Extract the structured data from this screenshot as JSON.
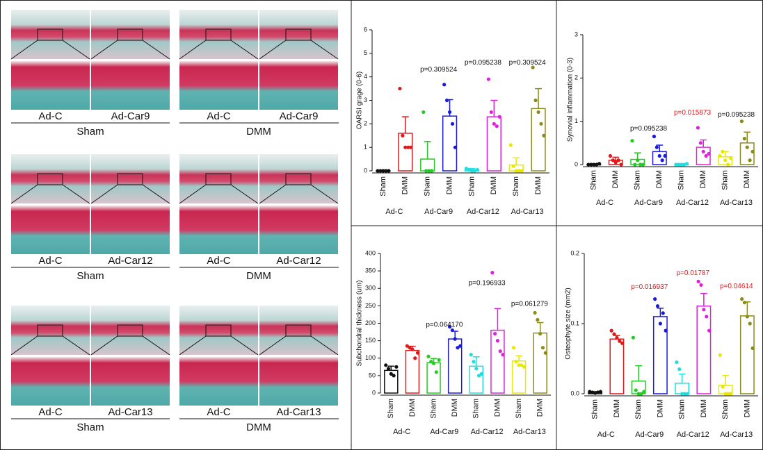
{
  "histology": {
    "rows": [
      {
        "labels": [
          "Ad-C",
          "Ad-Car9",
          "Ad-C",
          "Ad-Car9"
        ],
        "groups": [
          "Sham",
          "DMM"
        ]
      },
      {
        "labels": [
          "Ad-C",
          "Ad-Car12",
          "Ad-C",
          "Ad-Car12"
        ],
        "groups": [
          "Sham",
          "DMM"
        ]
      },
      {
        "labels": [
          "Ad-C",
          "Ad-Car13",
          "Ad-C",
          "Ad-Car13"
        ],
        "groups": [
          "Sham",
          "DMM"
        ]
      }
    ]
  },
  "chart_data": [
    {
      "type": "bar",
      "y_label": "OARSI grage (0-6)",
      "categories": [
        "Sham",
        "DMM",
        "Sham",
        "DMM",
        "Sham",
        "DMM",
        "Sham",
        "DMM"
      ],
      "groups": [
        "Ad-C",
        "Ad-Car9",
        "Ad-Car12",
        "Ad-Car13"
      ],
      "colors": [
        "#111111",
        "#e0191b",
        "#22cc22",
        "#1a1adb",
        "#22dddd",
        "#dd22dd",
        "#e8e800",
        "#8b8b1a"
      ],
      "values": [
        0,
        1.6,
        0.5,
        2.33,
        0.05,
        2.3,
        0.25,
        2.65
      ],
      "errors": [
        0,
        0.7,
        0.75,
        0.7,
        0.05,
        0.7,
        0.3,
        0.85
      ],
      "points": [
        [
          0,
          0,
          0,
          0,
          0
        ],
        [
          3.5,
          1.5,
          1,
          1,
          1
        ],
        [
          2.5,
          0,
          0,
          0
        ],
        [
          3.67,
          3,
          2.5,
          2,
          1
        ],
        [
          0.1,
          0.05,
          0,
          0,
          0.05
        ],
        [
          3.9,
          2.5,
          2,
          1.9,
          2.3
        ],
        [
          1.1,
          0.2,
          0,
          0,
          0
        ],
        [
          4.4,
          3,
          2.5,
          2,
          1.5
        ]
      ],
      "p_values": [
        null,
        "p=0.309524",
        "p=0.095238",
        "p=0.309524"
      ],
      "p_value_y": [
        null,
        4.3,
        4.6,
        4.6
      ],
      "p_value_colors": [
        null,
        "#111111",
        "#111111",
        "#111111"
      ],
      "ylim": [
        0,
        6
      ],
      "yticks": [
        0,
        1,
        2,
        3,
        4,
        5,
        6
      ]
    },
    {
      "type": "bar",
      "y_label": "Synovial inflammation (0-3)",
      "categories": [
        "Sham",
        "DMM",
        "Sham",
        "DMM",
        "Sham",
        "DMM",
        "Sham",
        "DMM"
      ],
      "groups": [
        "Ad-C",
        "Ad-Car9",
        "Ad-Car12",
        "Ad-Car13"
      ],
      "colors": [
        "#111111",
        "#e0191b",
        "#22cc22",
        "#1a1adb",
        "#22dddd",
        "#dd22dd",
        "#e8e800",
        "#8b8b1a"
      ],
      "values": [
        0,
        0.1,
        0.12,
        0.3,
        0,
        0.4,
        0.18,
        0.5
      ],
      "errors": [
        0.02,
        0.07,
        0.15,
        0.15,
        0.02,
        0.17,
        0.12,
        0.25
      ],
      "points": [
        [
          0,
          0,
          0,
          0,
          0.02
        ],
        [
          0.2,
          0.1,
          0.05,
          0.1,
          0
        ],
        [
          0.55,
          0,
          0.1,
          0,
          0
        ],
        [
          0.65,
          0.4,
          0.2,
          0.1,
          0.2
        ],
        [
          0,
          0,
          0,
          0,
          0.02
        ],
        [
          0.85,
          0.5,
          0.3,
          0.2,
          0.25
        ],
        [
          0.2,
          0.3,
          0.1,
          0,
          0.15
        ],
        [
          1.0,
          0.6,
          0.4,
          0.1,
          0.3
        ]
      ],
      "p_values": [
        null,
        "p=0.095238",
        "p=0.015873",
        "p=0.095238"
      ],
      "p_value_y": [
        null,
        0.83,
        1.2,
        1.15
      ],
      "p_value_colors": [
        null,
        "#111111",
        "#e0191b",
        "#111111"
      ],
      "ylim": [
        0,
        3
      ],
      "yticks": [
        0,
        1,
        2,
        3
      ]
    },
    {
      "type": "bar",
      "y_label": "Subchondral thickness (um)",
      "categories": [
        "Sham",
        "DMM",
        "Sham",
        "DMM",
        "Sham",
        "DMM",
        "Sham",
        "DMM"
      ],
      "groups": [
        "Ad-C",
        "Ad-Car9",
        "Ad-Car12",
        "Ad-Car13"
      ],
      "colors": [
        "#111111",
        "#e0191b",
        "#22cc22",
        "#1a1adb",
        "#22dddd",
        "#dd22dd",
        "#e8e800",
        "#8b8b1a"
      ],
      "values": [
        65,
        122,
        87,
        155,
        77,
        180,
        92,
        172
      ],
      "errors": [
        12,
        12,
        12,
        22,
        27,
        62,
        15,
        30
      ],
      "points": [
        [
          80,
          70,
          55,
          50,
          75
        ],
        [
          135,
          130,
          125,
          100,
          115
        ],
        [
          105,
          90,
          85,
          60,
          95
        ],
        [
          190,
          180,
          155,
          130,
          135
        ],
        [
          110,
          90,
          70,
          50,
          55
        ],
        [
          345,
          170,
          150,
          120,
          110
        ],
        [
          130,
          90,
          80,
          80,
          75
        ],
        [
          230,
          210,
          170,
          130,
          115
        ]
      ],
      "p_values": [
        null,
        "p=0.064170",
        "p=0.196933",
        "p=0.061279"
      ],
      "p_value_y": [
        null,
        195,
        315,
        255
      ],
      "p_value_colors": [
        null,
        "#111111",
        "#111111",
        "#111111"
      ],
      "ylim": [
        0,
        400
      ],
      "yticks": [
        0,
        50,
        100,
        150,
        200,
        250,
        300,
        350,
        400
      ]
    },
    {
      "type": "bar",
      "y_label": "Osteophyte size (mm2)",
      "categories": [
        "Sham",
        "DMM",
        "Sham",
        "DMM",
        "Sham",
        "DMM",
        "Sham",
        "DMM"
      ],
      "groups": [
        "Ad-C",
        "Ad-Car9",
        "Ad-Car12",
        "Ad-Car13"
      ],
      "colors": [
        "#111111",
        "#e0191b",
        "#22cc22",
        "#1a1adb",
        "#22dddd",
        "#dd22dd",
        "#e8e800",
        "#8b8b1a"
      ],
      "values": [
        0.002,
        0.078,
        0.018,
        0.11,
        0.015,
        0.125,
        0.012,
        0.111
      ],
      "errors": [
        0.001,
        0.005,
        0.022,
        0.012,
        0.013,
        0.018,
        0.014,
        0.02
      ],
      "points": [
        [
          0.003,
          0.002,
          0.001,
          0.002,
          0.003
        ],
        [
          0.09,
          0.085,
          0.08,
          0.075,
          0.072
        ],
        [
          0.08,
          0.005,
          0,
          0,
          0.003
        ],
        [
          0.135,
          0.125,
          0.1,
          0.115,
          0.09
        ],
        [
          0.045,
          0.035,
          0,
          0,
          0
        ],
        [
          0.16,
          0.155,
          0.12,
          0.11,
          0.09
        ],
        [
          0.055,
          0.01,
          0,
          0,
          0
        ],
        [
          0.135,
          0.13,
          0.11,
          0.1,
          0.065
        ]
      ],
      "p_values": [
        null,
        "p=0.016937",
        "p=0.01787",
        "p=0.04614"
      ],
      "p_value_y": [
        null,
        0.152,
        0.172,
        0.153
      ],
      "p_value_colors": [
        null,
        "#e0191b",
        "#e0191b",
        "#e0191b"
      ],
      "ylim": [
        0,
        0.2
      ],
      "yticks": [
        {
          "value": 0,
          "label": "0.0"
        },
        {
          "value": 0.1,
          "label": "0.1"
        },
        {
          "value": 0.2,
          "label": "0.2"
        }
      ]
    }
  ]
}
